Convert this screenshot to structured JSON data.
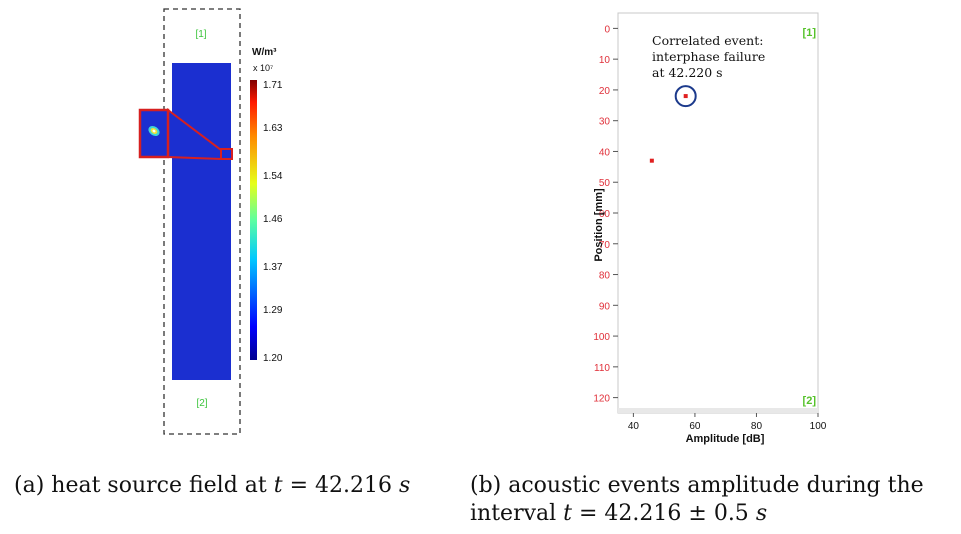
{
  "figure_a": {
    "top_label": "[1]",
    "bottom_label": "[2]",
    "colorbar": {
      "unit": "W/m³",
      "multiplier": "x 10⁷",
      "ticks": [
        "1.71",
        "1.63",
        "1.54",
        "1.46",
        "1.37",
        "1.29",
        "1.20"
      ],
      "min": 1.2,
      "max": 1.71
    },
    "colors": {
      "field": "#1b2fd0",
      "frame": "#d62020",
      "label_green": "#3cc43c"
    }
  },
  "figure_b": {
    "annotation": [
      "Correlated event:",
      "interphase failure",
      "at 42.220 s"
    ],
    "corner_top_right": "[1]",
    "corner_bottom_right": "[2]",
    "colors": {
      "point": "#e02020",
      "circle": "#1c3a8c",
      "tick_label": "#e0303a",
      "corner_label": "#55c22a"
    }
  },
  "chart_data": {
    "type": "scatter",
    "xlabel": "Amplitude [dB]",
    "ylabel": "Position [mm]",
    "xlim": [
      35,
      100
    ],
    "ylim": [
      -5,
      125
    ],
    "y_inverted": true,
    "x_ticks": [
      40,
      60,
      80,
      100
    ],
    "y_ticks": [
      0,
      10,
      20,
      30,
      40,
      50,
      60,
      70,
      80,
      90,
      100,
      110,
      120
    ],
    "series": [
      {
        "x": [
          57,
          46
        ],
        "y": [
          22,
          43
        ]
      }
    ],
    "highlighted_point": {
      "x": 57,
      "y": 22
    }
  },
  "captions": {
    "a_prefix": "(a) heat source field at ",
    "a_var": "t",
    "a_eq": " = ",
    "a_val": "42.216 ",
    "a_unit": "s",
    "b_line1": "(b) acoustic events amplitude during the",
    "b_prefix": "interval ",
    "b_var": "t",
    "b_eq": " = ",
    "b_val": "42.216 ± 0.5 ",
    "b_unit": "s"
  }
}
